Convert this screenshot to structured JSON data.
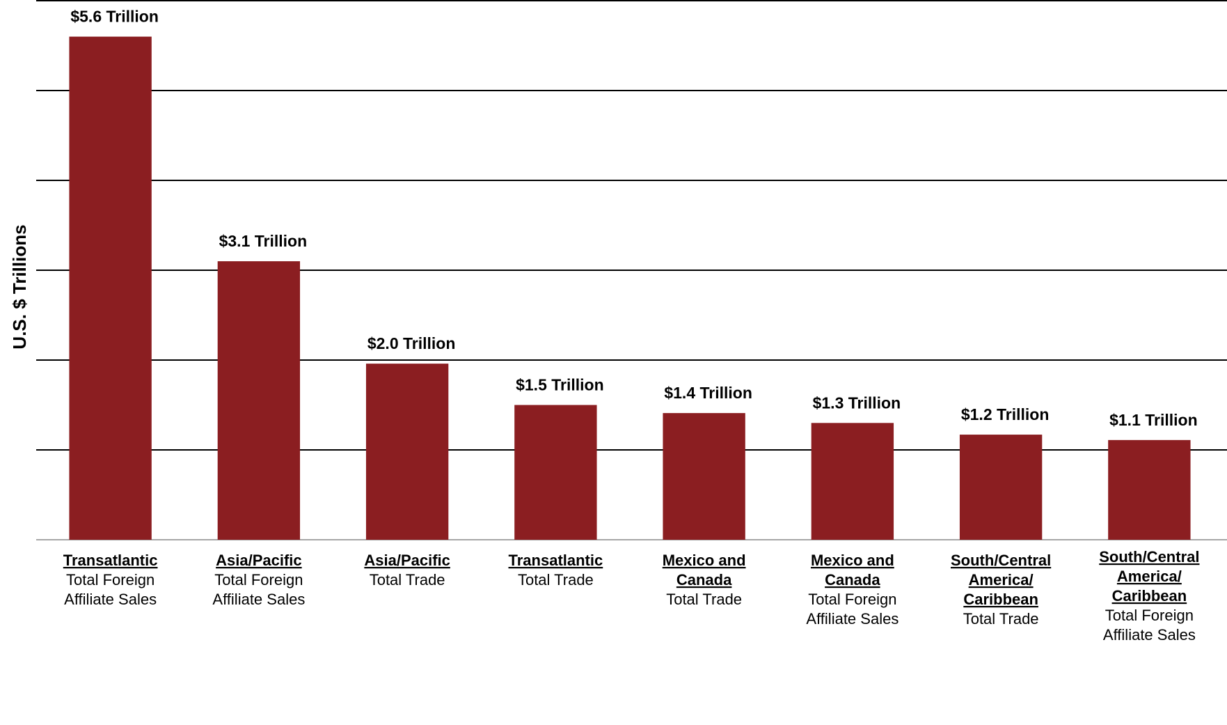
{
  "chart_data": {
    "type": "bar",
    "ylabel": "U.S. $ Trillions",
    "ylim": [
      0,
      6
    ],
    "ytick_step": 1,
    "grid": true,
    "bar_color": "#8b1e21",
    "grid_color": "#000000",
    "categories": [
      {
        "region": [
          "Transatlantic"
        ],
        "metric": [
          "Total Foreign",
          "Affiliate Sales"
        ]
      },
      {
        "region": [
          "Asia/Pacific"
        ],
        "metric": [
          "Total Foreign",
          "Affiliate Sales"
        ]
      },
      {
        "region": [
          "Asia/Pacific"
        ],
        "metric": [
          "Total Trade"
        ]
      },
      {
        "region": [
          "Transatlantic"
        ],
        "metric": [
          "Total Trade"
        ]
      },
      {
        "region": [
          "Mexico and",
          "Canada"
        ],
        "metric": [
          "Total Trade"
        ]
      },
      {
        "region": [
          "Mexico and",
          "Canada"
        ],
        "metric": [
          "Total Foreign",
          "Affiliate Sales"
        ]
      },
      {
        "region": [
          "South/Central",
          "America/",
          "Caribbean"
        ],
        "metric": [
          "Total Trade"
        ]
      },
      {
        "region": [
          "South/Central",
          "America/",
          "Caribbean"
        ],
        "metric": [
          "Total Foreign",
          "Affiliate Sales"
        ]
      }
    ],
    "values": [
      5.6,
      3.1,
      1.96,
      1.5,
      1.41,
      1.3,
      1.17,
      1.11
    ],
    "value_labels": [
      "$5.6 Trillion",
      "$3.1 Trillion",
      "$2.0 Trillion",
      "$1.5 Trillion",
      "$1.4 Trillion",
      "$1.3 Trillion",
      "$1.2 Trillion",
      "$1.1 Trillion"
    ]
  }
}
